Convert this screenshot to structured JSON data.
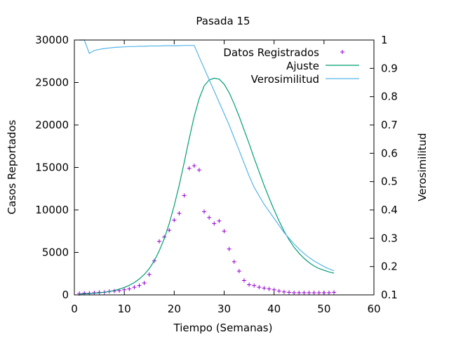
{
  "chart_data": {
    "type": "line",
    "title": "Pasada 15",
    "xlabel": "Tiempo (Semanas)",
    "ylabel": "Casos Reportados",
    "y2label": "Verosimilitud",
    "xlim": [
      0,
      60
    ],
    "ylim": [
      0,
      30000
    ],
    "y2lim": [
      0.1,
      1
    ],
    "x_ticks": [
      "0",
      "10",
      "20",
      "30",
      "40",
      "50",
      "60"
    ],
    "y_ticks": [
      "0",
      "5000",
      "10000",
      "15000",
      "20000",
      "25000",
      "30000"
    ],
    "y2_ticks": [
      "0.1",
      "0.2",
      "0.3",
      "0.4",
      "0.5",
      "0.6",
      "0.7",
      "0.8",
      "0.9",
      "1"
    ],
    "grid": false,
    "legend_position": "top-right",
    "colors": {
      "datos": "#9400d3",
      "ajuste": "#009e73",
      "verosimilitud": "#56b4e9"
    },
    "series": [
      {
        "name": "Datos Registrados",
        "kind": "points",
        "axis": "y",
        "x": [
          1,
          2,
          3,
          4,
          5,
          6,
          7,
          8,
          9,
          10,
          11,
          12,
          13,
          14,
          15,
          16,
          17,
          18,
          19,
          20,
          21,
          22,
          23,
          24,
          25,
          26,
          27,
          28,
          29,
          30,
          31,
          32,
          33,
          34,
          35,
          36,
          37,
          38,
          39,
          40,
          41,
          42,
          43,
          44,
          45,
          46,
          47,
          48,
          49,
          50,
          51,
          52
        ],
        "y": [
          150,
          200,
          200,
          250,
          300,
          300,
          400,
          450,
          500,
          600,
          700,
          900,
          1100,
          1400,
          2400,
          4000,
          6300,
          6800,
          7600,
          8800,
          9600,
          11700,
          14900,
          15200,
          14700,
          9800,
          9100,
          8400,
          8700,
          7500,
          5400,
          3900,
          2800,
          1700,
          1200,
          1100,
          900,
          800,
          700,
          600,
          450,
          350,
          300,
          250,
          250,
          250,
          250,
          250,
          250,
          250,
          250,
          300
        ]
      },
      {
        "name": "Ajuste",
        "kind": "line",
        "axis": "y",
        "x": [
          1,
          2,
          3,
          4,
          5,
          6,
          7,
          8,
          9,
          10,
          11,
          12,
          13,
          14,
          15,
          16,
          17,
          18,
          19,
          20,
          21,
          22,
          23,
          24,
          25,
          26,
          27,
          28,
          29,
          30,
          31,
          32,
          33,
          34,
          35,
          36,
          37,
          38,
          39,
          40,
          41,
          42,
          43,
          44,
          45,
          46,
          47,
          48,
          49,
          50,
          51,
          52
        ],
        "y": [
          100,
          120,
          150,
          190,
          240,
          310,
          400,
          520,
          680,
          880,
          1130,
          1450,
          1870,
          2400,
          3100,
          4000,
          5200,
          6600,
          8400,
          10500,
          12900,
          15600,
          18400,
          21000,
          23100,
          24600,
          25300,
          25500,
          25400,
          24800,
          23800,
          22500,
          21000,
          19400,
          17800,
          16100,
          14500,
          12900,
          11400,
          10000,
          8700,
          7500,
          6500,
          5600,
          4900,
          4300,
          3800,
          3400,
          3100,
          2900,
          2700,
          2550
        ]
      },
      {
        "name": "Verosimilitud",
        "kind": "line",
        "axis": "y2",
        "x": [
          1,
          2,
          3,
          4,
          5,
          6,
          7,
          8,
          9,
          10,
          11,
          12,
          13,
          14,
          15,
          16,
          17,
          18,
          19,
          20,
          21,
          22,
          23,
          24,
          25,
          26,
          27,
          28,
          29,
          30,
          31,
          32,
          33,
          34,
          35,
          36,
          37,
          38,
          39,
          40,
          41,
          42,
          43,
          44,
          45,
          46,
          47,
          48,
          49,
          50,
          51,
          52
        ],
        "y": [
          1.0,
          1.0,
          0.953,
          0.963,
          0.967,
          0.97,
          0.972,
          0.974,
          0.975,
          0.976,
          0.977,
          0.977,
          0.978,
          0.978,
          0.979,
          0.979,
          0.979,
          0.98,
          0.98,
          0.98,
          0.98,
          0.981,
          0.981,
          0.981,
          0.94,
          0.9,
          0.86,
          0.82,
          0.78,
          0.74,
          0.7,
          0.655,
          0.61,
          0.565,
          0.52,
          0.48,
          0.45,
          0.42,
          0.395,
          0.37,
          0.345,
          0.32,
          0.3,
          0.28,
          0.262,
          0.246,
          0.232,
          0.22,
          0.21,
          0.2,
          0.192,
          0.185
        ]
      }
    ]
  }
}
